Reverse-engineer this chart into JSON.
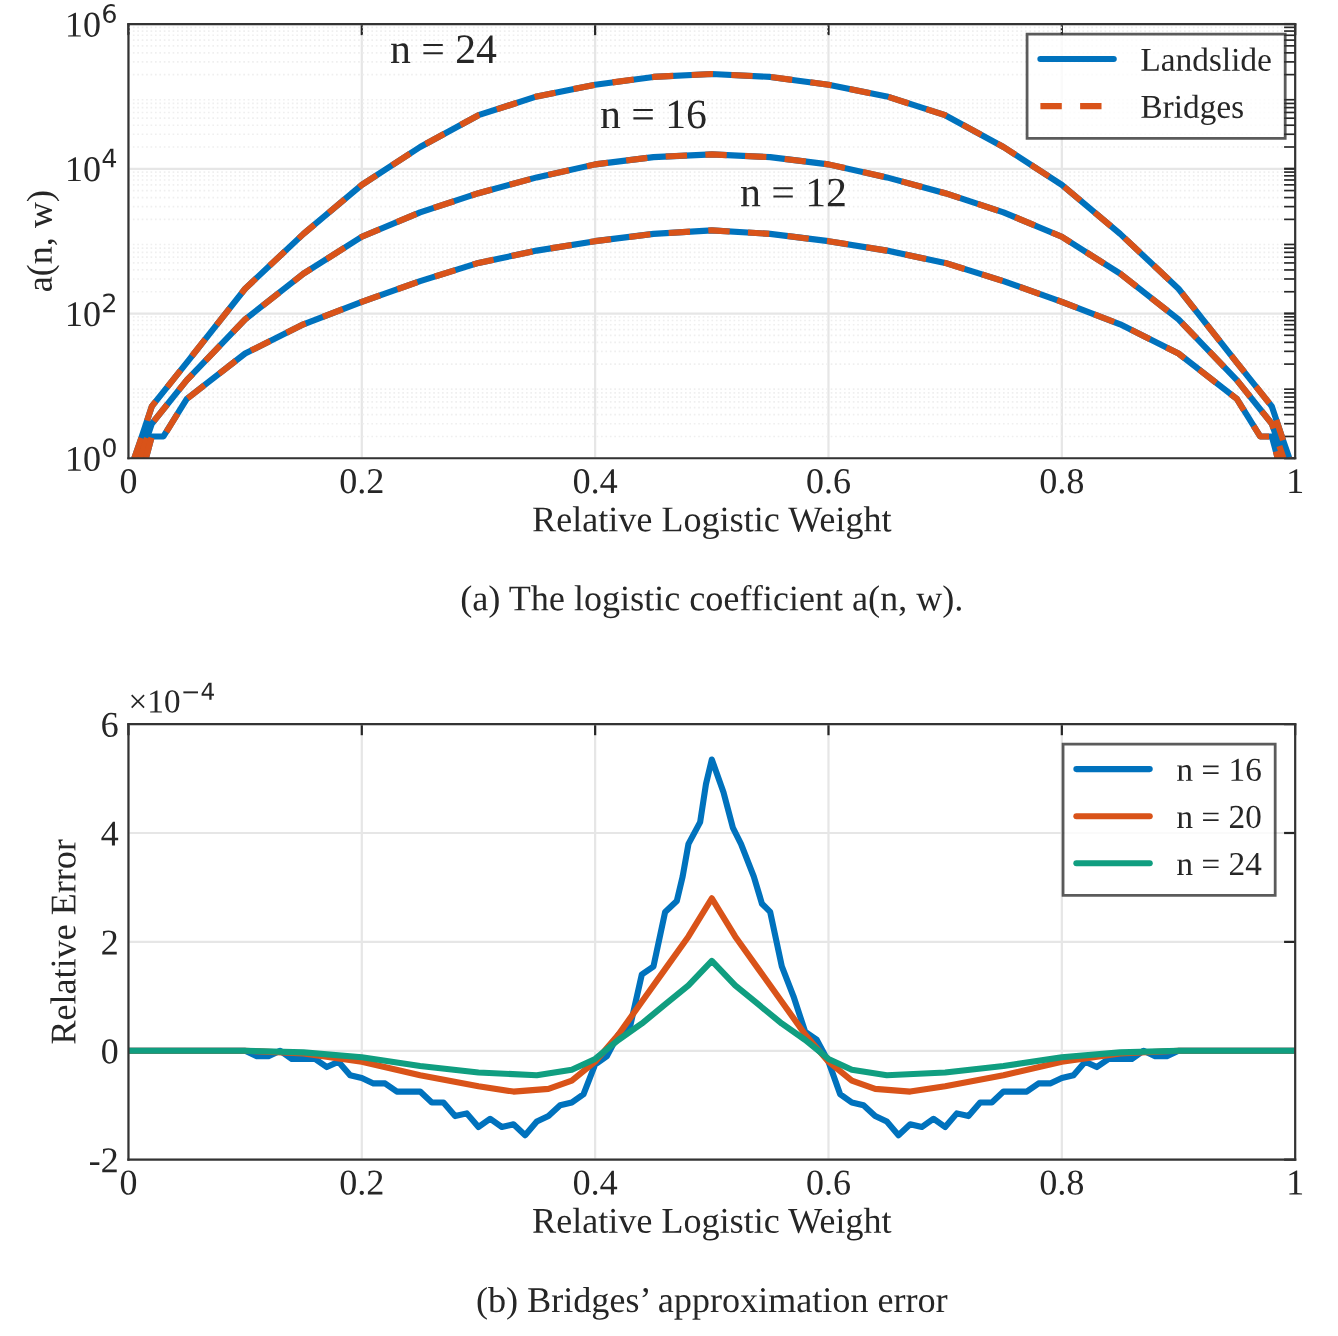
{
  "chart_data": [
    {
      "type": "line",
      "title": "(a) The logistic coefficient a(n, w).",
      "xlabel": "Relative Logistic Weight",
      "ylabel": "a(n, w)",
      "log": "y",
      "xlim": [
        0,
        1
      ],
      "xticks": [
        0,
        0.2,
        0.4,
        0.6,
        0.8,
        1
      ],
      "ylim": [
        1,
        1000000
      ],
      "yticks": [
        {
          "value": 1,
          "label": "10$^{0}$"
        },
        {
          "value": 100,
          "label": "10$^{2}$"
        },
        {
          "value": 10000,
          "label": "10$^{4}$"
        },
        {
          "value": 1000000,
          "label": "10$^{6}$"
        }
      ],
      "grid": true,
      "legend": "top right",
      "annotations": [
        "n = 24",
        "n = 16",
        "n = 12"
      ],
      "series": [
        {
          "name": "Landslide",
          "color": "#0072bd",
          "line_style": "solid",
          "x": [
            0.005,
            0.01,
            0.02,
            0.05,
            0.1,
            0.15,
            0.2,
            0.25,
            0.3,
            0.35,
            0.4,
            0.45,
            0.5,
            0.55,
            0.6,
            0.65,
            0.7,
            0.75,
            0.8,
            0.85,
            0.9,
            0.95,
            0.98,
            0.99,
            0.995
          ],
          "values": [
            1,
            1.7,
            5.2,
            21,
            220,
            1260,
            6000,
            20000,
            55000,
            100000,
            145000,
            186000,
            204000,
            186000,
            145000,
            100000,
            55000,
            20000,
            6000,
            1260,
            220,
            21,
            5.2,
            1.7,
            1
          ]
        },
        {
          "color": "#0072bd",
          "line_style": "solid",
          "x": [
            0.01,
            0.02,
            0.05,
            0.1,
            0.15,
            0.2,
            0.25,
            0.3,
            0.35,
            0.4,
            0.45,
            0.5,
            0.55,
            0.6,
            0.65,
            0.7,
            0.75,
            0.8,
            0.85,
            0.9,
            0.95,
            0.98,
            0.99
          ],
          "values": [
            1,
            3,
            12,
            83,
            355,
            1150,
            2500,
            4600,
            7600,
            11500,
            14500,
            15800,
            14500,
            11500,
            7600,
            4600,
            2500,
            1150,
            355,
            83,
            12,
            3,
            1
          ]
        },
        {
          "color": "#0072bd",
          "line_style": "solid",
          "x": [
            0.015,
            0.02,
            0.03,
            0.05,
            0.1,
            0.15,
            0.2,
            0.25,
            0.3,
            0.35,
            0.4,
            0.45,
            0.5,
            0.55,
            0.6,
            0.65,
            0.7,
            0.75,
            0.8,
            0.85,
            0.9,
            0.95,
            0.97,
            0.98,
            0.985
          ],
          "values": [
            1,
            2,
            2,
            6.6,
            28,
            71,
            145,
            280,
            500,
            740,
            1000,
            1260,
            1410,
            1260,
            1000,
            740,
            500,
            280,
            145,
            71,
            28,
            6.6,
            2,
            2,
            1
          ]
        },
        {
          "name": "Bridges",
          "color": "#d95319",
          "line_style": "dashed",
          "x": [
            0.005,
            0.01,
            0.02,
            0.05,
            0.1,
            0.15,
            0.2,
            0.25,
            0.3,
            0.35,
            0.4,
            0.45,
            0.5,
            0.55,
            0.6,
            0.65,
            0.7,
            0.75,
            0.8,
            0.85,
            0.9,
            0.95,
            0.98,
            0.99,
            0.995
          ],
          "values": [
            1,
            1.7,
            5.2,
            21,
            220,
            1260,
            6000,
            20000,
            55000,
            100000,
            145000,
            186000,
            204000,
            186000,
            145000,
            100000,
            55000,
            20000,
            6000,
            1260,
            220,
            21,
            5.2,
            1.7,
            1
          ]
        },
        {
          "color": "#d95319",
          "line_style": "dashed",
          "x": [
            0.01,
            0.02,
            0.05,
            0.1,
            0.15,
            0.2,
            0.25,
            0.3,
            0.35,
            0.4,
            0.45,
            0.5,
            0.55,
            0.6,
            0.65,
            0.7,
            0.75,
            0.8,
            0.85,
            0.9,
            0.95,
            0.98,
            0.99
          ],
          "values": [
            1,
            3,
            12,
            83,
            355,
            1150,
            2500,
            4600,
            7600,
            11500,
            14500,
            15800,
            14500,
            11500,
            7600,
            4600,
            2500,
            1150,
            355,
            83,
            12,
            3,
            1
          ]
        },
        {
          "color": "#d95319",
          "line_style": "dashed",
          "x": [
            0.015,
            0.02,
            0.03,
            0.05,
            0.1,
            0.15,
            0.2,
            0.25,
            0.3,
            0.35,
            0.4,
            0.45,
            0.5,
            0.55,
            0.6,
            0.65,
            0.7,
            0.75,
            0.8,
            0.85,
            0.9,
            0.95,
            0.97,
            0.98,
            0.985
          ],
          "values": [
            1,
            2,
            2,
            6.6,
            28,
            71,
            145,
            280,
            500,
            740,
            1000,
            1260,
            1410,
            1260,
            1000,
            740,
            500,
            280,
            145,
            71,
            28,
            6.6,
            2,
            2,
            1
          ]
        }
      ]
    },
    {
      "type": "line",
      "title": "(b) Bridges’ approximation error",
      "xlabel": "Relative Logistic Weight",
      "ylabel": "Relative Error",
      "xlim": [
        0,
        1
      ],
      "xticks": [
        0,
        0.2,
        0.4,
        0.6,
        0.8,
        1
      ],
      "ylim": [
        -2,
        6
      ],
      "yticks": [
        -2,
        0,
        2,
        4,
        6
      ],
      "grid": true,
      "legend": "top right",
      "annotations": [
        "×10$^{−4}$"
      ],
      "series": [
        {
          "name": "n = 16",
          "color": "#0072bd",
          "line_style": "solid",
          "x": [
            0,
            0.1,
            0.11,
            0.12,
            0.13,
            0.14,
            0.16,
            0.17,
            0.18,
            0.19,
            0.2,
            0.21,
            0.22,
            0.23,
            0.25,
            0.26,
            0.27,
            0.28,
            0.29,
            0.3,
            0.31,
            0.32,
            0.33,
            0.34,
            0.35,
            0.36,
            0.37,
            0.38,
            0.39,
            0.4,
            0.41,
            0.42,
            0.43,
            0.44,
            0.45,
            0.46,
            0.47,
            0.475,
            0.48,
            0.49,
            0.495,
            0.5,
            0.51,
            0.518,
            0.525,
            0.536,
            0.543,
            0.55,
            0.56,
            0.57,
            0.58,
            0.59,
            0.6,
            0.61,
            0.62,
            0.63,
            0.64,
            0.65,
            0.66,
            0.67,
            0.68,
            0.69,
            0.7,
            0.71,
            0.72,
            0.73,
            0.74,
            0.75,
            0.77,
            0.78,
            0.79,
            0.8,
            0.81,
            0.82,
            0.83,
            0.84,
            0.86,
            0.87,
            0.88,
            0.89,
            0.9,
            1
          ],
          "values": [
            0,
            0,
            -0.1,
            -0.1,
            0,
            -0.15,
            -0.15,
            -0.3,
            -0.2,
            -0.45,
            -0.5,
            -0.6,
            -0.6,
            -0.75,
            -0.75,
            -0.95,
            -0.95,
            -1.2,
            -1.15,
            -1.4,
            -1.25,
            -1.4,
            -1.35,
            -1.55,
            -1.3,
            -1.2,
            -1.0,
            -0.95,
            -0.8,
            -0.25,
            -0.1,
            0.3,
            0.45,
            1.4,
            1.55,
            2.55,
            2.75,
            3.2,
            3.8,
            4.2,
            4.9,
            5.35,
            4.75,
            4.1,
            3.8,
            3.2,
            2.7,
            2.55,
            1.55,
            1.0,
            0.35,
            0.2,
            -0.2,
            -0.8,
            -0.95,
            -1.0,
            -1.2,
            -1.3,
            -1.55,
            -1.35,
            -1.4,
            -1.25,
            -1.4,
            -1.15,
            -1.2,
            -0.95,
            -0.95,
            -0.75,
            -0.75,
            -0.6,
            -0.6,
            -0.5,
            -0.45,
            -0.2,
            -0.3,
            -0.15,
            -0.15,
            0,
            -0.1,
            -0.1,
            0,
            0
          ]
        },
        {
          "name": "n = 20",
          "color": "#d95319",
          "line_style": "solid",
          "x": [
            0,
            0.1,
            0.15,
            0.2,
            0.25,
            0.3,
            0.33,
            0.36,
            0.38,
            0.4,
            0.42,
            0.44,
            0.46,
            0.48,
            0.5,
            0.52,
            0.54,
            0.56,
            0.58,
            0.6,
            0.62,
            0.64,
            0.67,
            0.7,
            0.75,
            0.8,
            0.85,
            0.9,
            1
          ],
          "values": [
            0,
            0,
            -0.05,
            -0.2,
            -0.45,
            -0.65,
            -0.75,
            -0.7,
            -0.55,
            -0.2,
            0.3,
            0.9,
            1.5,
            2.1,
            2.8,
            2.1,
            1.5,
            0.9,
            0.3,
            -0.2,
            -0.55,
            -0.7,
            -0.75,
            -0.65,
            -0.45,
            -0.2,
            -0.05,
            0,
            0
          ]
        },
        {
          "name": "n = 24",
          "color": "#109e80",
          "line_style": "solid",
          "x": [
            0,
            0.1,
            0.15,
            0.2,
            0.25,
            0.3,
            0.35,
            0.38,
            0.4,
            0.42,
            0.44,
            0.46,
            0.48,
            0.5,
            0.52,
            0.54,
            0.56,
            0.58,
            0.6,
            0.62,
            0.65,
            0.7,
            0.75,
            0.8,
            0.85,
            0.9,
            1
          ],
          "values": [
            0,
            0,
            -0.03,
            -0.12,
            -0.28,
            -0.4,
            -0.45,
            -0.35,
            -0.15,
            0.2,
            0.5,
            0.85,
            1.2,
            1.65,
            1.2,
            0.85,
            0.5,
            0.2,
            -0.15,
            -0.35,
            -0.45,
            -0.4,
            -0.28,
            -0.12,
            -0.03,
            0,
            0
          ]
        }
      ]
    }
  ]
}
